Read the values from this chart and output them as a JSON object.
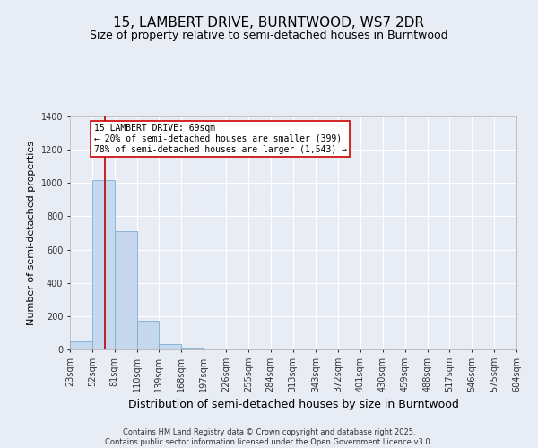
{
  "title1": "15, LAMBERT DRIVE, BURNTWOOD, WS7 2DR",
  "title2": "Size of property relative to semi-detached houses in Burntwood",
  "xlabel": "Distribution of semi-detached houses by size in Burntwood",
  "ylabel": "Number of semi-detached properties",
  "bin_edges": [
    23,
    52,
    81,
    110,
    139,
    168,
    197,
    226,
    255,
    284,
    313,
    343,
    372,
    401,
    430,
    459,
    488,
    517,
    546,
    575,
    604
  ],
  "bar_heights": [
    50,
    1020,
    710,
    170,
    35,
    10,
    0,
    0,
    0,
    0,
    0,
    0,
    0,
    0,
    0,
    0,
    0,
    0,
    0,
    0
  ],
  "bar_color": "#c5d8ee",
  "bar_edge_color": "#7aadd4",
  "property_size": 69,
  "red_line_color": "#bb0000",
  "annotation_line1": "15 LAMBERT DRIVE: 69sqm",
  "annotation_line2": "← 20% of semi-detached houses are smaller (399)",
  "annotation_line3": "78% of semi-detached houses are larger (1,543) →",
  "annotation_box_color": "#ffffff",
  "annotation_box_edge": "#cc0000",
  "ylim": [
    0,
    1400
  ],
  "yticks": [
    0,
    200,
    400,
    600,
    800,
    1000,
    1200,
    1400
  ],
  "bg_color": "#e8edf5",
  "grid_color": "#ffffff",
  "footer_line1": "Contains HM Land Registry data © Crown copyright and database right 2025.",
  "footer_line2": "Contains public sector information licensed under the Open Government Licence v3.0.",
  "title1_fontsize": 11,
  "title2_fontsize": 9,
  "ylabel_fontsize": 8,
  "xlabel_fontsize": 9
}
